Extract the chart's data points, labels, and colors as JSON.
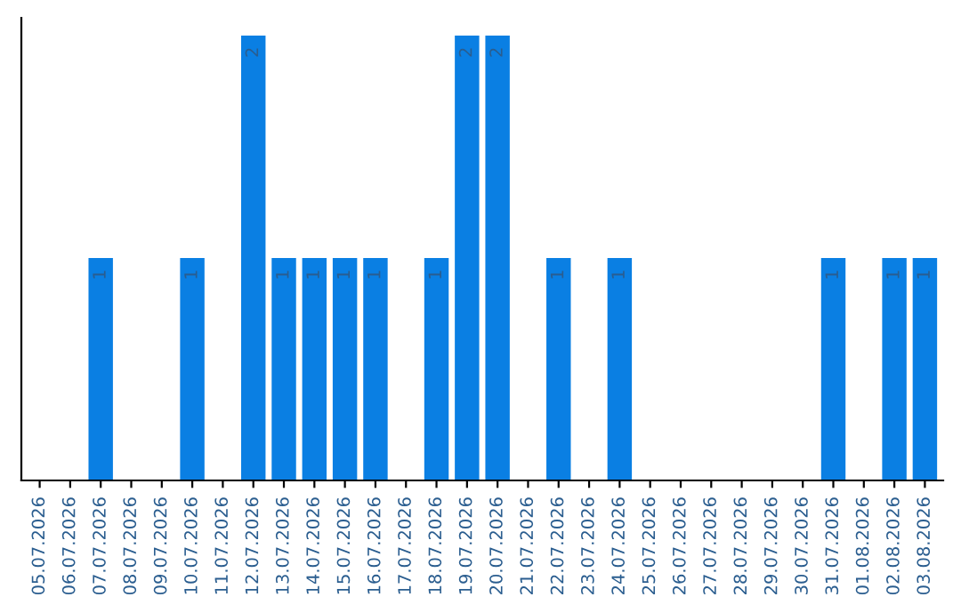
{
  "chart_data": {
    "type": "bar",
    "categories": [
      "05.07.2026",
      "06.07.2026",
      "07.07.2026",
      "08.07.2026",
      "09.07.2026",
      "10.07.2026",
      "11.07.2026",
      "12.07.2026",
      "13.07.2026",
      "14.07.2026",
      "15.07.2026",
      "16.07.2026",
      "17.07.2026",
      "18.07.2026",
      "19.07.2026",
      "20.07.2026",
      "21.07.2026",
      "22.07.2026",
      "23.07.2026",
      "24.07.2026",
      "25.07.2026",
      "26.07.2026",
      "27.07.2026",
      "28.07.2026",
      "29.07.2026",
      "30.07.2026",
      "31.07.2026",
      "01.08.2026",
      "02.08.2026",
      "03.08.2026"
    ],
    "values": [
      0,
      0,
      1,
      0,
      0,
      1,
      0,
      2,
      1,
      1,
      1,
      1,
      0,
      1,
      2,
      2,
      0,
      1,
      0,
      1,
      0,
      0,
      0,
      0,
      0,
      0,
      1,
      0,
      1,
      1
    ],
    "value_labels": [
      null,
      null,
      "1",
      null,
      null,
      "1",
      null,
      "2",
      "1",
      "1",
      "1",
      "1",
      null,
      "1",
      "2",
      "2",
      null,
      "1",
      null,
      "1",
      null,
      null,
      null,
      null,
      null,
      null,
      "1",
      null,
      "1",
      "1"
    ],
    "color": "#0a7fe3",
    "ylim": [
      0,
      2.08
    ],
    "tick_labels": "x",
    "grid": false,
    "legend": false
  }
}
